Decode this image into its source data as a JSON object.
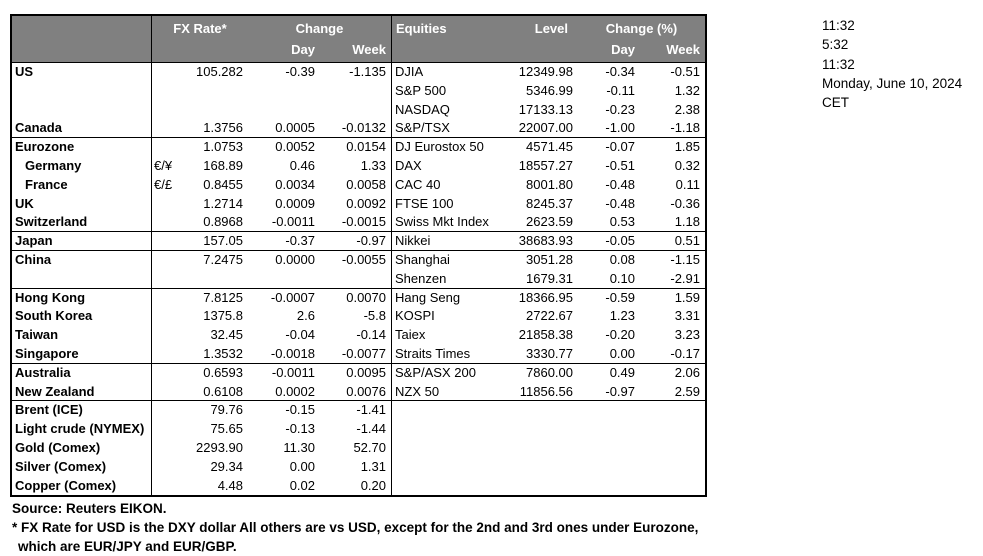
{
  "colors": {
    "header_bg": "#808080",
    "header_text": "#ffffff",
    "border": "#000000"
  },
  "clock_panel": {
    "times": [
      "11:32",
      "5:32",
      "11:32",
      "Monday, June 10, 2024",
      "CET"
    ]
  },
  "table": {
    "fx_header": {
      "rate": "FX Rate*",
      "change": "Change",
      "day": "Day",
      "week": "Week"
    },
    "eq_header": {
      "name": "Equities",
      "level": "Level",
      "change": "Change (%)",
      "day": "Day",
      "week": "Week"
    },
    "rows": [
      {
        "label": "US",
        "pair": "",
        "rate": "105.282",
        "day": "-0.39",
        "week": "-1.135",
        "eq": "DJIA",
        "level": "12349.98",
        "eqday": "-0.34",
        "eqweek": "-0.51"
      },
      {
        "label": "",
        "pair": "",
        "rate": "",
        "day": "",
        "week": "",
        "eq": "S&P 500",
        "level": "5346.99",
        "eqday": "-0.11",
        "eqweek": "1.32"
      },
      {
        "label": "",
        "pair": "",
        "rate": "",
        "day": "",
        "week": "",
        "eq": "NASDAQ",
        "level": "17133.13",
        "eqday": "-0.23",
        "eqweek": "2.38"
      },
      {
        "label": "Canada",
        "pair": "",
        "rate": "1.3756",
        "day": "0.0005",
        "week": "-0.0132",
        "eq": "S&P/TSX",
        "level": "22007.00",
        "eqday": "-1.00",
        "eqweek": "-1.18",
        "sep": true
      },
      {
        "label": "Eurozone",
        "pair": "",
        "rate": "1.0753",
        "day": "0.0052",
        "week": "0.0154",
        "eq": "DJ Eurostox 50",
        "level": "4571.45",
        "eqday": "-0.07",
        "eqweek": "1.85"
      },
      {
        "label": "Germany",
        "indent": true,
        "pair": "€/¥",
        "rate": "168.89",
        "day": "0.46",
        "week": "1.33",
        "eq": "DAX",
        "level": "18557.27",
        "eqday": "-0.51",
        "eqweek": "0.32"
      },
      {
        "label": "France",
        "indent": true,
        "pair": "€/£",
        "rate": "0.8455",
        "day": "0.0034",
        "week": "0.0058",
        "eq": "CAC 40",
        "level": "8001.80",
        "eqday": "-0.48",
        "eqweek": "0.11"
      },
      {
        "label": "UK",
        "pair": "",
        "rate": "1.2714",
        "day": "0.0009",
        "week": "0.0092",
        "eq": "FTSE 100",
        "level": "8245.37",
        "eqday": "-0.48",
        "eqweek": "-0.36"
      },
      {
        "label": "Switzerland",
        "pair": "",
        "rate": "0.8968",
        "day": "-0.0011",
        "week": "-0.0015",
        "eq": "Swiss Mkt Index",
        "level": "2623.59",
        "eqday": "0.53",
        "eqweek": "1.18",
        "sep": true
      },
      {
        "label": "Japan",
        "pair": "",
        "rate": "157.05",
        "day": "-0.37",
        "week": "-0.97",
        "eq": "Nikkei",
        "level": "38683.93",
        "eqday": "-0.05",
        "eqweek": "0.51",
        "sep": true
      },
      {
        "label": "China",
        "pair": "",
        "rate": "7.2475",
        "day": "0.0000",
        "week": "-0.0055",
        "eq": "Shanghai",
        "level": "3051.28",
        "eqday": "0.08",
        "eqweek": "-1.15"
      },
      {
        "label": "",
        "pair": "",
        "rate": "",
        "day": "",
        "week": "",
        "eq": "Shenzen",
        "level": "1679.31",
        "eqday": "0.10",
        "eqweek": "-2.91",
        "sep": true
      },
      {
        "label": "Hong Kong",
        "pair": "",
        "rate": "7.8125",
        "day": "-0.0007",
        "week": "0.0070",
        "eq": "Hang Seng",
        "level": "18366.95",
        "eqday": "-0.59",
        "eqweek": "1.59"
      },
      {
        "label": "South Korea",
        "pair": "",
        "rate": "1375.8",
        "day": "2.6",
        "week": "-5.8",
        "eq": "KOSPI",
        "level": "2722.67",
        "eqday": "1.23",
        "eqweek": "3.31"
      },
      {
        "label": "Taiwan",
        "pair": "",
        "rate": "32.45",
        "day": "-0.04",
        "week": "-0.14",
        "eq": "Taiex",
        "level": "21858.38",
        "eqday": "-0.20",
        "eqweek": "3.23"
      },
      {
        "label": "Singapore",
        "pair": "",
        "rate": "1.3532",
        "day": "-0.0018",
        "week": "-0.0077",
        "eq": "Straits Times",
        "level": "3330.77",
        "eqday": "0.00",
        "eqweek": "-0.17",
        "sep": true
      },
      {
        "label": "Australia",
        "pair": "",
        "rate": "0.6593",
        "day": "-0.0011",
        "week": "0.0095",
        "eq": "S&P/ASX  200",
        "level": "7860.00",
        "eqday": "0.49",
        "eqweek": "2.06"
      },
      {
        "label": "New Zealand",
        "pair": "",
        "rate": "0.6108",
        "day": "0.0002",
        "week": "0.0076",
        "eq": "NZX 50",
        "level": "11856.56",
        "eqday": "-0.97",
        "eqweek": "2.59",
        "sep": true
      },
      {
        "label": "Brent (ICE)",
        "pair": "",
        "rate": "79.76",
        "day": "-0.15",
        "week": "-1.41",
        "eq": "",
        "level": "",
        "eqday": "",
        "eqweek": ""
      },
      {
        "label": "Light crude (NYMEX)",
        "pair": "",
        "rate": "75.65",
        "day": "-0.13",
        "week": "-1.44",
        "eq": "",
        "level": "",
        "eqday": "",
        "eqweek": ""
      },
      {
        "label": "Gold (Comex)",
        "pair": "",
        "rate": "2293.90",
        "day": "11.30",
        "week": "52.70",
        "eq": "",
        "level": "",
        "eqday": "",
        "eqweek": ""
      },
      {
        "label": "Silver (Comex)",
        "pair": "",
        "rate": "29.34",
        "day": "0.00",
        "week": "1.31",
        "eq": "",
        "level": "",
        "eqday": "",
        "eqweek": ""
      },
      {
        "label": "Copper (Comex)",
        "pair": "",
        "rate": "4.48",
        "day": "0.02",
        "week": "0.20",
        "eq": "",
        "level": "",
        "eqday": "",
        "eqweek": ""
      }
    ]
  },
  "footer": {
    "source": "Source:  Reuters EIKON.",
    "note_line1": "* FX Rate for USD is the DXY dollar  All others are vs USD, except for the 2nd and 3rd ones under Eurozone,",
    "note_line2": "which are EUR/JPY and EUR/GBP."
  }
}
